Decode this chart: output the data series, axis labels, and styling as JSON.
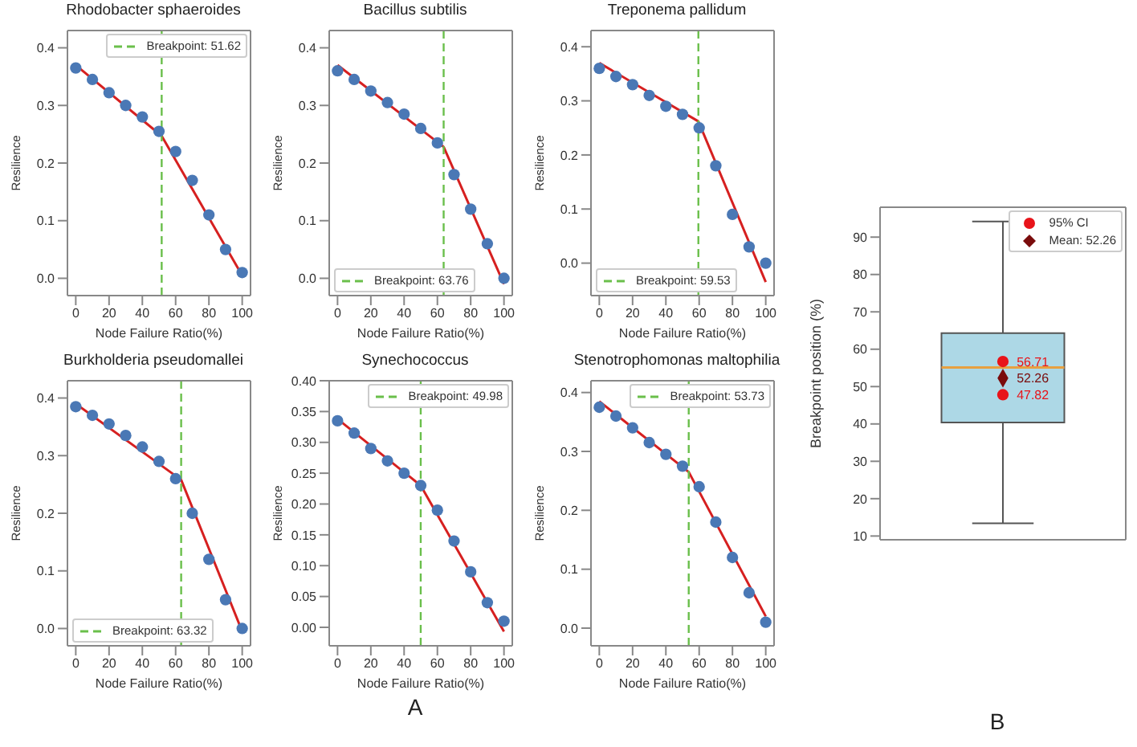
{
  "chart_data": [
    {
      "type": "scatter",
      "title": "Rhodobacter sphaeroides",
      "xlabel": "Node Failure Ratio(%)",
      "ylabel": "Resilience",
      "xlim": [
        -5,
        105
      ],
      "xticks": [
        0,
        20,
        40,
        60,
        80,
        100
      ],
      "ylim": [
        -0.03,
        0.43
      ],
      "yticks": [
        {
          "value": 0,
          "label": "0.0"
        },
        0.1,
        0.2,
        0.3,
        0.4
      ],
      "legend": "top right",
      "series": [
        {
          "type": "scatter",
          "marker": "circle",
          "color": "#4a78b5",
          "x": [
            0,
            10,
            20,
            30,
            40,
            50,
            60,
            70,
            80,
            90,
            100
          ],
          "values": [
            0.365,
            0.345,
            0.322,
            0.3,
            0.28,
            0.255,
            0.22,
            0.17,
            0.11,
            0.05,
            0.01
          ]
        },
        {
          "type": "line",
          "color": "#d62020",
          "x": [
            0,
            51.62,
            100
          ],
          "values": [
            0.37,
            0.247,
            0.005
          ]
        }
      ],
      "ref_lines": [
        {
          "axis": "x",
          "value": 51.62,
          "label": "Breakpoint: 51.62",
          "color": "#6abf4b",
          "line_style": "dashed"
        }
      ]
    },
    {
      "type": "scatter",
      "title": "Bacillus subtilis",
      "xlabel": "Node Failure Ratio(%)",
      "ylabel": "Resilience",
      "xlim": [
        -5,
        105
      ],
      "xticks": [
        0,
        20,
        40,
        60,
        80,
        100
      ],
      "ylim": [
        -0.03,
        0.43
      ],
      "yticks": [
        {
          "value": 0,
          "label": "0.0"
        },
        0.1,
        0.2,
        0.3,
        0.4
      ],
      "legend": "bottom left",
      "series": [
        {
          "type": "scatter",
          "marker": "circle",
          "color": "#4a78b5",
          "x": [
            0,
            10,
            20,
            30,
            40,
            50,
            60,
            70,
            80,
            90,
            100
          ],
          "values": [
            0.36,
            0.345,
            0.325,
            0.305,
            0.285,
            0.26,
            0.235,
            0.18,
            0.12,
            0.06,
            0.0
          ]
        },
        {
          "type": "line",
          "color": "#d62020",
          "x": [
            0,
            63.76,
            100
          ],
          "values": [
            0.37,
            0.228,
            -0.01
          ]
        }
      ],
      "ref_lines": [
        {
          "axis": "x",
          "value": 63.76,
          "label": "Breakpoint: 63.76",
          "color": "#6abf4b",
          "line_style": "dashed"
        }
      ]
    },
    {
      "type": "scatter",
      "title": "Treponema pallidum",
      "xlabel": "Node Failure Ratio(%)",
      "ylabel": "Resilience",
      "xlim": [
        -5,
        105
      ],
      "xticks": [
        0,
        20,
        40,
        60,
        80,
        100
      ],
      "ylim": [
        -0.06,
        0.43
      ],
      "yticks": [
        {
          "value": 0,
          "label": "0.0"
        },
        0.1,
        0.2,
        0.3,
        0.4
      ],
      "legend": "bottom left",
      "series": [
        {
          "type": "scatter",
          "marker": "circle",
          "color": "#4a78b5",
          "x": [
            0,
            10,
            20,
            30,
            40,
            50,
            60,
            70,
            80,
            90,
            100
          ],
          "values": [
            0.36,
            0.345,
            0.33,
            0.31,
            0.29,
            0.275,
            0.25,
            0.18,
            0.09,
            0.03,
            0.0
          ]
        },
        {
          "type": "line",
          "color": "#d62020",
          "x": [
            0,
            59.53,
            100
          ],
          "values": [
            0.37,
            0.262,
            -0.035
          ]
        }
      ],
      "ref_lines": [
        {
          "axis": "x",
          "value": 59.53,
          "label": "Breakpoint: 59.53",
          "color": "#6abf4b",
          "line_style": "dashed"
        }
      ]
    },
    {
      "type": "scatter",
      "title": "Burkholderia pseudomallei",
      "xlabel": "Node Failure Ratio(%)",
      "ylabel": "Resilience",
      "xlim": [
        -5,
        105
      ],
      "xticks": [
        0,
        20,
        40,
        60,
        80,
        100
      ],
      "ylim": [
        -0.03,
        0.43
      ],
      "yticks": [
        {
          "value": 0,
          "label": "0.0"
        },
        0.1,
        0.2,
        0.3,
        0.4
      ],
      "legend": "bottom left",
      "series": [
        {
          "type": "scatter",
          "marker": "circle",
          "color": "#4a78b5",
          "x": [
            0,
            10,
            20,
            30,
            40,
            50,
            60,
            70,
            80,
            90,
            100
          ],
          "values": [
            0.385,
            0.37,
            0.355,
            0.335,
            0.315,
            0.29,
            0.26,
            0.2,
            0.12,
            0.05,
            0.0
          ]
        },
        {
          "type": "line",
          "color": "#d62020",
          "x": [
            0,
            63.32,
            100
          ],
          "values": [
            0.39,
            0.258,
            -0.005
          ]
        }
      ],
      "ref_lines": [
        {
          "axis": "x",
          "value": 63.32,
          "label": "Breakpoint: 63.32",
          "color": "#6abf4b",
          "line_style": "dashed"
        }
      ]
    },
    {
      "type": "scatter",
      "title": "Synechococcus",
      "xlabel": "Node Failure Ratio(%)",
      "ylabel": "Resilience",
      "xlim": [
        -5,
        105
      ],
      "xticks": [
        0,
        20,
        40,
        60,
        80,
        100
      ],
      "ylim": [
        -0.03,
        0.4
      ],
      "yticks": [
        {
          "value": 0,
          "label": "0.00"
        },
        {
          "value": 0.05,
          "label": "0.05"
        },
        {
          "value": 0.1,
          "label": "0.10"
        },
        {
          "value": 0.15,
          "label": "0.15"
        },
        {
          "value": 0.2,
          "label": "0.20"
        },
        {
          "value": 0.25,
          "label": "0.25"
        },
        {
          "value": 0.3,
          "label": "0.30"
        },
        {
          "value": 0.35,
          "label": "0.35"
        },
        {
          "value": 0.4,
          "label": "0.40"
        }
      ],
      "legend": "top right",
      "annotations": [
        "A"
      ],
      "series": [
        {
          "type": "scatter",
          "marker": "circle",
          "color": "#4a78b5",
          "x": [
            0,
            10,
            20,
            30,
            40,
            50,
            60,
            70,
            80,
            90,
            100
          ],
          "values": [
            0.335,
            0.315,
            0.29,
            0.27,
            0.25,
            0.23,
            0.19,
            0.14,
            0.09,
            0.04,
            0.01
          ]
        },
        {
          "type": "line",
          "color": "#d62020",
          "x": [
            0,
            49.98,
            100
          ],
          "values": [
            0.338,
            0.23,
            -0.007
          ]
        }
      ],
      "ref_lines": [
        {
          "axis": "x",
          "value": 49.98,
          "label": "Breakpoint: 49.98",
          "color": "#6abf4b",
          "line_style": "dashed"
        }
      ]
    },
    {
      "type": "scatter",
      "title": "Stenotrophomonas maltophilia",
      "xlabel": "Node Failure Ratio(%)",
      "ylabel": "Resilience",
      "xlim": [
        -5,
        105
      ],
      "xticks": [
        0,
        20,
        40,
        60,
        80,
        100
      ],
      "ylim": [
        -0.03,
        0.42
      ],
      "yticks": [
        {
          "value": 0,
          "label": "0.0"
        },
        0.1,
        0.2,
        0.3,
        0.4
      ],
      "legend": "top right",
      "series": [
        {
          "type": "scatter",
          "marker": "circle",
          "color": "#4a78b5",
          "x": [
            0,
            10,
            20,
            30,
            40,
            50,
            60,
            70,
            80,
            90,
            100
          ],
          "values": [
            0.375,
            0.36,
            0.34,
            0.315,
            0.295,
            0.275,
            0.24,
            0.18,
            0.12,
            0.06,
            0.01
          ]
        },
        {
          "type": "line",
          "color": "#d62020",
          "x": [
            0,
            53.73,
            100
          ],
          "values": [
            0.385,
            0.265,
            0.02
          ]
        }
      ],
      "ref_lines": [
        {
          "axis": "x",
          "value": 53.73,
          "label": "Breakpoint: 53.73",
          "color": "#6abf4b",
          "line_style": "dashed"
        }
      ]
    },
    {
      "type": "box",
      "ylabel": "Breakpoint position (%)",
      "categories": [
        null
      ],
      "ylim": [
        9,
        98
      ],
      "yticks": [
        10,
        20,
        30,
        40,
        50,
        60,
        70,
        80,
        90
      ],
      "legend": "top right",
      "annotations": [
        "B"
      ],
      "series": [
        {
          "type": "box",
          "color": "#add8e6",
          "boxes": [
            {
              "low": 13.4,
              "q1": 40.4,
              "median": 55.1,
              "q3": 64.3,
              "high": 94.2
            }
          ]
        },
        {
          "type": "scatter",
          "name": "95% CI",
          "color": "#e8141a",
          "marker": "circle",
          "x": [
            null,
            null
          ],
          "values": [
            56.71,
            47.82
          ],
          "value_labels": [
            "56.71",
            "47.82"
          ]
        },
        {
          "type": "scatter",
          "name": "Mean: 52.26",
          "color": "#7a0c0c",
          "marker": "diamond",
          "values": [
            52.26
          ],
          "value_labels": [
            "52.26"
          ]
        }
      ]
    }
  ]
}
